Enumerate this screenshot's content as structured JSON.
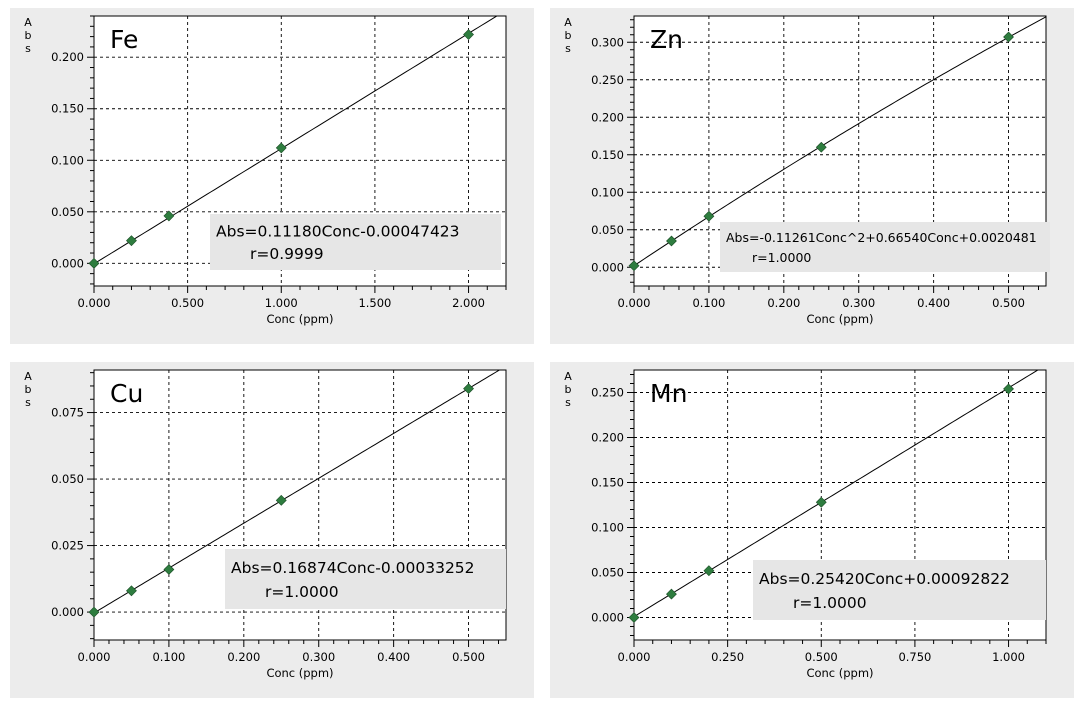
{
  "chart_data": [
    {
      "type": "scatter",
      "element": "Fe",
      "ylabel": "Abs",
      "xlabel": "Conc (ppm)",
      "xlim": [
        0,
        2.2
      ],
      "ylim": [
        -0.022,
        0.24
      ],
      "xticks": [
        0,
        0.5,
        1.0,
        1.5,
        2.0
      ],
      "xtick_labels": [
        "0.000",
        "0.500",
        "1.000",
        "1.500",
        "2.000"
      ],
      "yticks": [
        0,
        0.05,
        0.1,
        0.15,
        0.2
      ],
      "ytick_labels": [
        "0.000",
        "0.050",
        "0.100",
        "0.150",
        "0.200"
      ],
      "x": [
        0,
        0.2,
        0.4,
        1.0,
        2.0
      ],
      "y": [
        0.0,
        0.022,
        0.046,
        0.112,
        0.222
      ],
      "fit": {
        "a2": 0,
        "a1": 0.1118,
        "a0": -0.00047423
      },
      "equation": "Abs=0.11180Conc-0.00047423",
      "r_text": "r=0.9999",
      "grid": true
    },
    {
      "type": "scatter",
      "element": "Zn",
      "ylabel": "Abs",
      "xlabel": "Conc (ppm)",
      "xlim": [
        0,
        0.55
      ],
      "ylim": [
        -0.025,
        0.335
      ],
      "xticks": [
        0,
        0.1,
        0.2,
        0.3,
        0.4,
        0.5
      ],
      "xtick_labels": [
        "0.000",
        "0.100",
        "0.200",
        "0.300",
        "0.400",
        "0.500"
      ],
      "yticks": [
        0,
        0.05,
        0.1,
        0.15,
        0.2,
        0.25,
        0.3
      ],
      "ytick_labels": [
        "0.000",
        "0.050",
        "0.100",
        "0.150",
        "0.200",
        "0.250",
        "0.300"
      ],
      "x": [
        0,
        0.05,
        0.1,
        0.25,
        0.5
      ],
      "y": [
        0.002,
        0.035,
        0.068,
        0.16,
        0.307
      ],
      "fit": {
        "a2": -0.11261,
        "a1": 0.6654,
        "a0": 0.0020481
      },
      "equation": "Abs=-0.11261Conc^2+0.66540Conc+0.0020481",
      "r_text": "r=1.0000",
      "grid": true
    },
    {
      "type": "scatter",
      "element": "Cu",
      "ylabel": "Abs",
      "xlabel": "Conc (ppm)",
      "xlim": [
        0,
        0.55
      ],
      "ylim": [
        -0.0105,
        0.091
      ],
      "xticks": [
        0,
        0.1,
        0.2,
        0.3,
        0.4,
        0.5
      ],
      "xtick_labels": [
        "0.000",
        "0.100",
        "0.200",
        "0.300",
        "0.400",
        "0.500"
      ],
      "yticks": [
        0,
        0.025,
        0.05,
        0.075
      ],
      "ytick_labels": [
        "0.000",
        "0.025",
        "0.050",
        "0.075"
      ],
      "x": [
        0,
        0.05,
        0.1,
        0.25,
        0.5
      ],
      "y": [
        0.0,
        0.008,
        0.016,
        0.042,
        0.084
      ],
      "fit": {
        "a2": 0,
        "a1": 0.16874,
        "a0": -0.00033252
      },
      "equation": "Abs=0.16874Conc-0.00033252",
      "r_text": "r=1.0000",
      "grid": true
    },
    {
      "type": "scatter",
      "element": "Mn",
      "ylabel": "Abs",
      "xlabel": "Conc (ppm)",
      "xlim": [
        0,
        1.1
      ],
      "ylim": [
        -0.025,
        0.275
      ],
      "xticks": [
        0,
        0.25,
        0.5,
        0.75,
        1.0
      ],
      "xtick_labels": [
        "0.000",
        "0.250",
        "0.500",
        "0.750",
        "1.000"
      ],
      "yticks": [
        0,
        0.05,
        0.1,
        0.15,
        0.2,
        0.25
      ],
      "ytick_labels": [
        "0.000",
        "0.050",
        "0.100",
        "0.150",
        "0.200",
        "0.250"
      ],
      "x": [
        0,
        0.1,
        0.2,
        0.5,
        1.0
      ],
      "y": [
        0.0,
        0.026,
        0.052,
        0.128,
        0.254
      ],
      "fit": {
        "a2": 0,
        "a1": 0.2542,
        "a0": 0.00092822
      },
      "equation": "Abs=0.25420Conc+0.00092822",
      "r_text": "r=1.0000",
      "grid": true
    }
  ]
}
